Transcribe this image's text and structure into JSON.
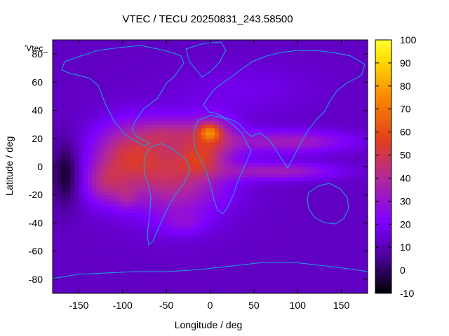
{
  "chart_data": {
    "type": "heatmap",
    "title": "VTEC / TECU 20250831_243.58500",
    "xlabel": "Longitude / deg",
    "ylabel": "Latitude / deg",
    "series_label": "'Vtec_",
    "xlim": [
      -180,
      180
    ],
    "ylim": [
      -90,
      90
    ],
    "xticks": [
      -150,
      -100,
      -50,
      0,
      50,
      100,
      150
    ],
    "yticks": [
      -80,
      -60,
      -40,
      -20,
      0,
      20,
      40,
      60,
      80
    ],
    "colorbar": {
      "range": [
        -10,
        100
      ],
      "ticks": [
        -10,
        0,
        10,
        20,
        30,
        40,
        50,
        60,
        70,
        80,
        90,
        100
      ],
      "palette": [
        "#000000",
        "#4b0096",
        "#7d00ff",
        "#b0289c",
        "#e13e1e",
        "#f98c00",
        "#ffdc00",
        "#ffff30"
      ]
    },
    "background_value": 12,
    "tec_regions": [
      {
        "lon": -165,
        "lat": -5,
        "value": -18,
        "rx": 16,
        "ry": 22
      },
      {
        "lon": -95,
        "lat": 10,
        "value": 28,
        "rx": 40,
        "ry": 22
      },
      {
        "lon": -40,
        "lat": -5,
        "value": 32,
        "rx": 60,
        "ry": 30
      },
      {
        "lon": -120,
        "lat": -12,
        "value": 20,
        "rx": 25,
        "ry": 15
      },
      {
        "lon": -95,
        "lat": -22,
        "value": 10,
        "rx": 12,
        "ry": 8
      },
      {
        "lon": -30,
        "lat": -40,
        "value": 8,
        "rx": 25,
        "ry": 8
      },
      {
        "lon": 0,
        "lat": 22,
        "value": 24,
        "rx": 30,
        "ry": 14
      },
      {
        "lon": 0,
        "lat": 25,
        "value": 30,
        "rx": 12,
        "ry": 6
      },
      {
        "lon": -10,
        "lat": 5,
        "value": 16,
        "rx": 25,
        "ry": 10
      },
      {
        "lon": 90,
        "lat": 18,
        "value": 22,
        "rx": 70,
        "ry": 8
      },
      {
        "lon": 80,
        "lat": -3,
        "value": 22,
        "rx": 65,
        "ry": 6
      },
      {
        "lon": -50,
        "lat": 25,
        "value": 14,
        "rx": 30,
        "ry": 10
      },
      {
        "lon": 40,
        "lat": 55,
        "value": 6,
        "rx": 80,
        "ry": 18
      }
    ]
  }
}
